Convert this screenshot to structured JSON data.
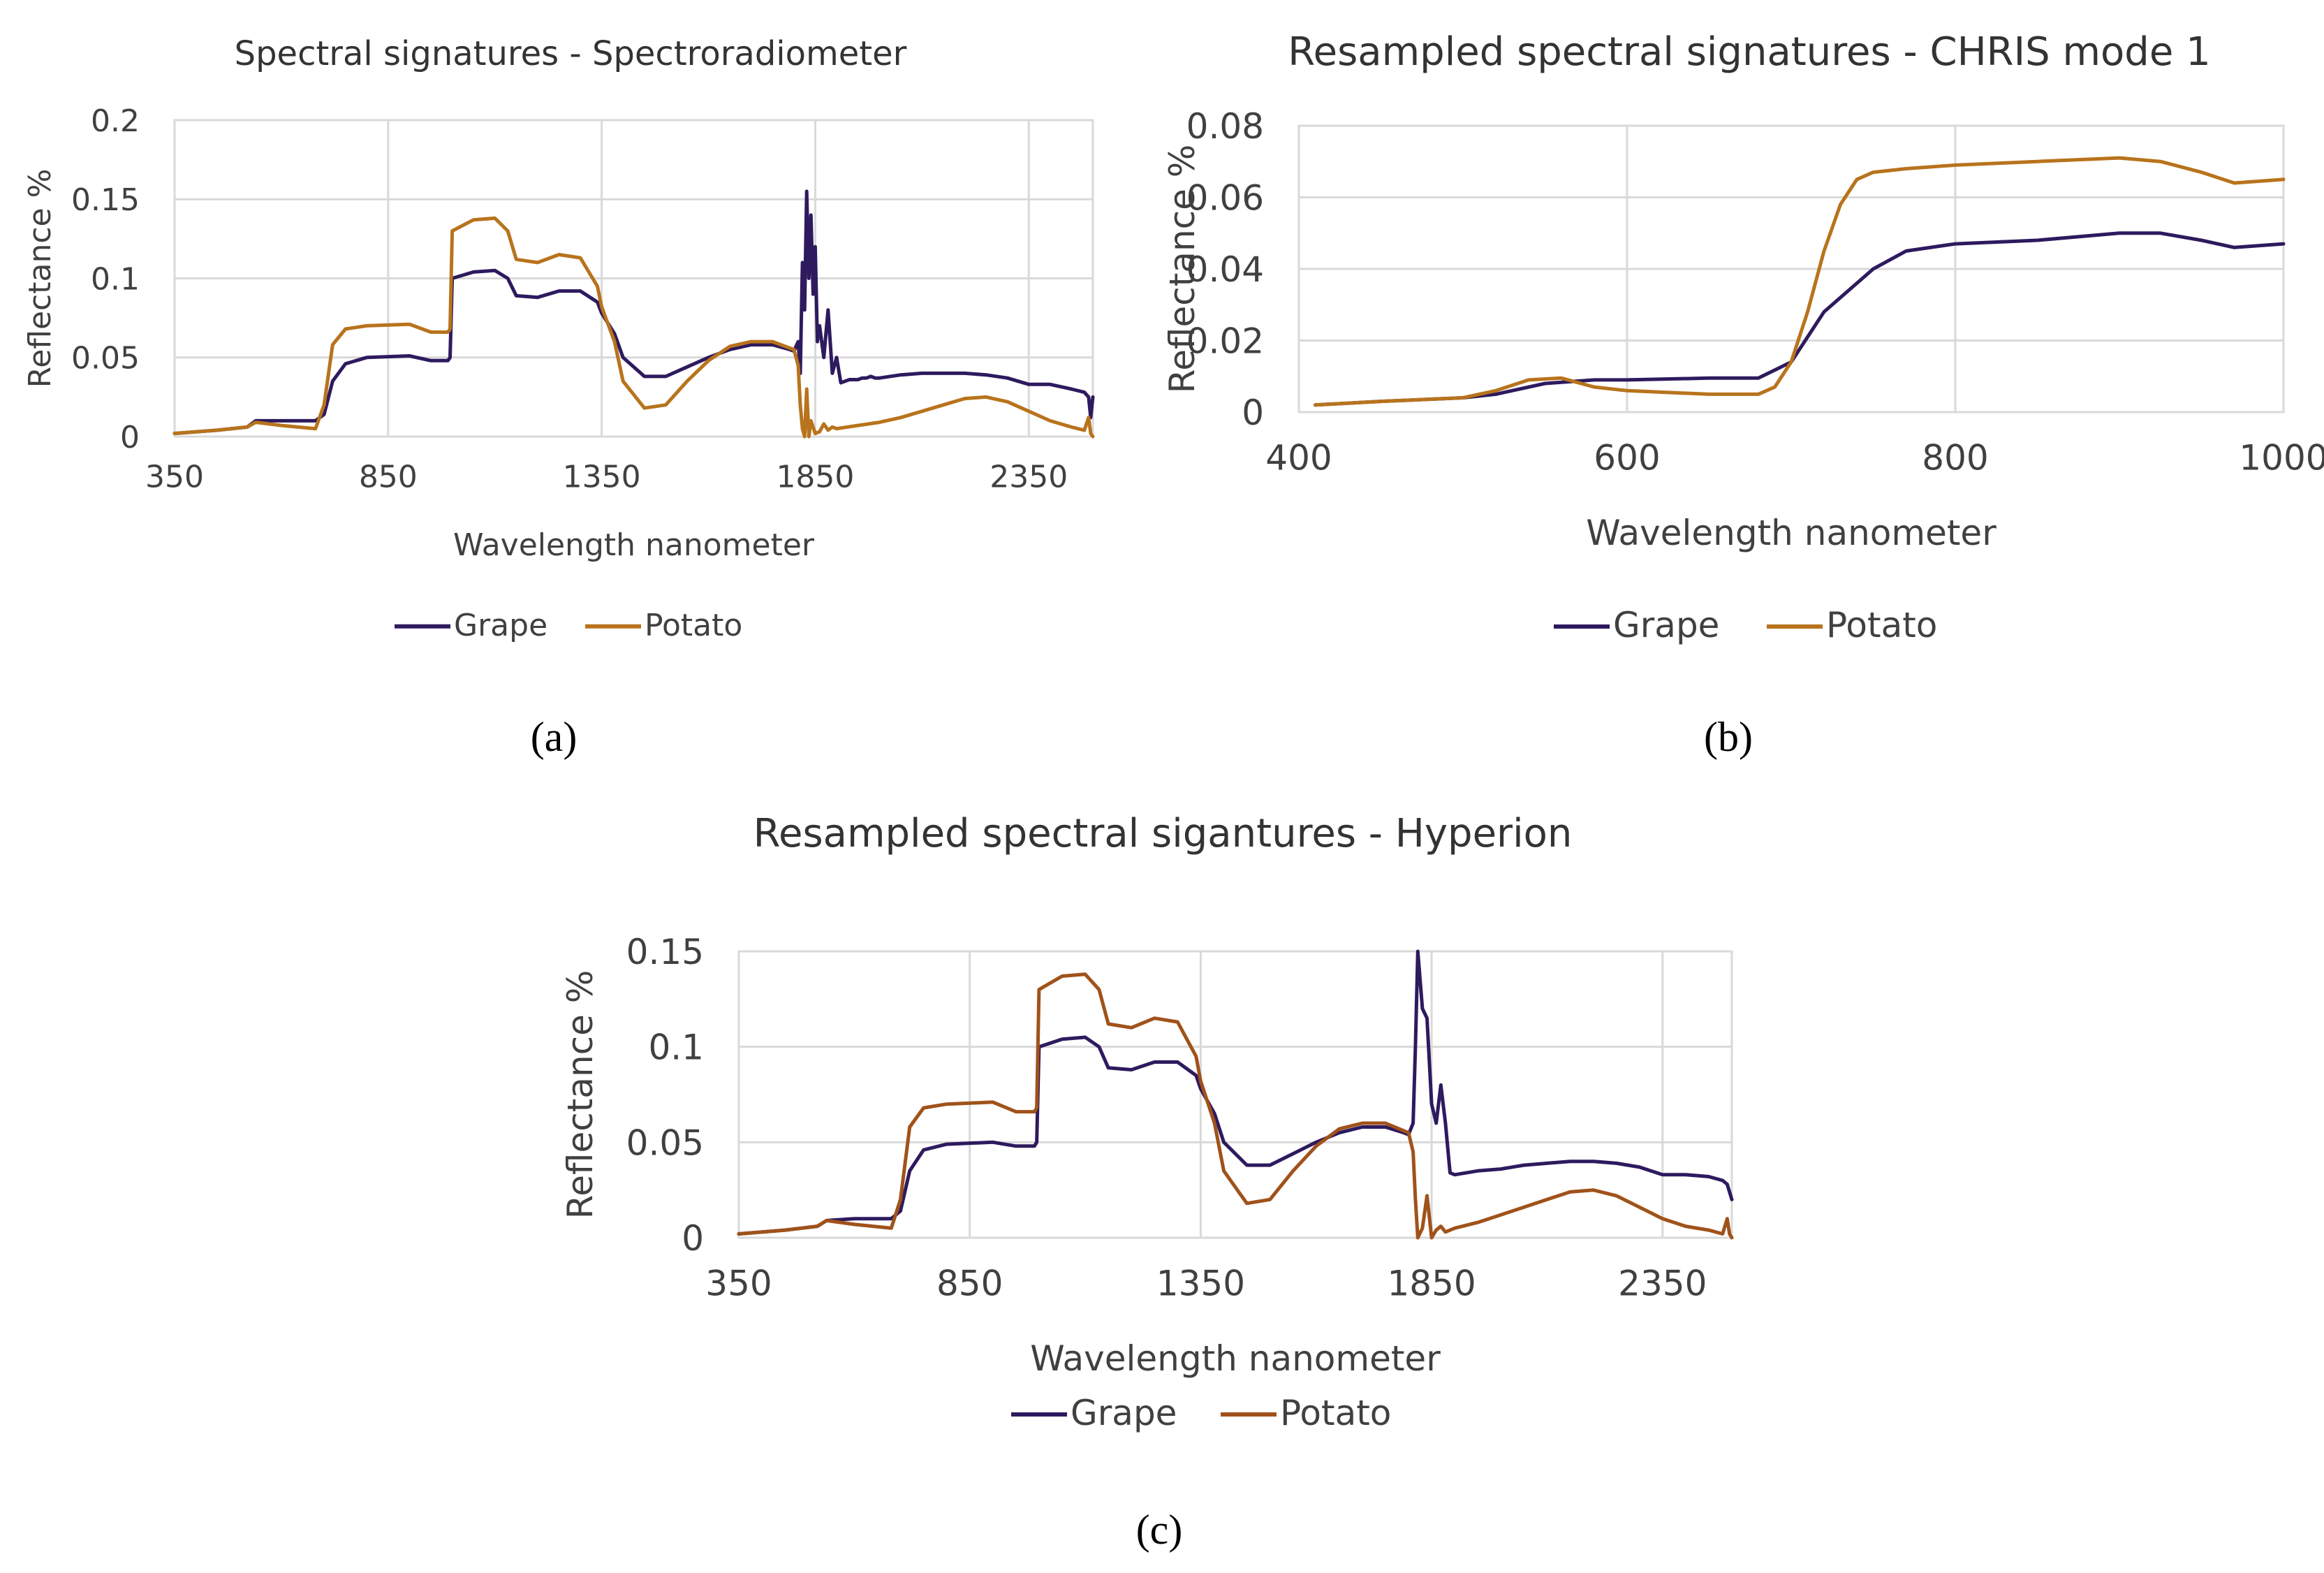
{
  "colors": {
    "grape": "#2e1a5e",
    "potato": "#b8731c",
    "potato_c": "#a0521a",
    "grid": "#d9d9d9",
    "spike": "#6a2aa0"
  },
  "chart_data": [
    {
      "id": "a",
      "type": "line",
      "title": "Spectral signatures - Spectroradiometer",
      "xlabel": "Wavelength nanometer",
      "ylabel": "Reflectance %",
      "xlim": [
        350,
        2500
      ],
      "ylim": [
        0,
        0.2
      ],
      "xticks": [
        350,
        850,
        1350,
        1850,
        2350
      ],
      "yticks": [
        0,
        0.05,
        0.1,
        0.15,
        0.2
      ],
      "xtick_labels": [
        "350",
        "850",
        "1350",
        "1850",
        "2350"
      ],
      "ytick_labels": [
        "0",
        "0.05",
        "0.1",
        "0.15",
        "0.2"
      ],
      "legend": "bottom",
      "panel_label": "(a)",
      "series": [
        {
          "name": "Grape",
          "color_key": "grape",
          "x": [
            350,
            450,
            520,
            540,
            600,
            680,
            700,
            720,
            750,
            800,
            900,
            950,
            990,
            995,
            1000,
            1050,
            1100,
            1130,
            1150,
            1200,
            1250,
            1300,
            1340,
            1350,
            1380,
            1400,
            1450,
            1500,
            1550,
            1600,
            1650,
            1700,
            1750,
            1790,
            1800,
            1810,
            1815,
            1820,
            1825,
            1830,
            1835,
            1840,
            1845,
            1850,
            1855,
            1860,
            1870,
            1880,
            1890,
            1900,
            1910,
            1920,
            1930,
            1940,
            1950,
            1960,
            1970,
            1980,
            1990,
            2000,
            2050,
            2100,
            2150,
            2200,
            2250,
            2300,
            2350,
            2400,
            2450,
            2480,
            2490,
            2495,
            2500
          ],
          "y": [
            0.002,
            0.004,
            0.006,
            0.01,
            0.01,
            0.01,
            0.014,
            0.035,
            0.046,
            0.05,
            0.051,
            0.048,
            0.048,
            0.05,
            0.1,
            0.104,
            0.105,
            0.1,
            0.089,
            0.088,
            0.092,
            0.092,
            0.085,
            0.078,
            0.065,
            0.05,
            0.038,
            0.038,
            0.044,
            0.05,
            0.055,
            0.058,
            0.058,
            0.055,
            0.054,
            0.06,
            0.04,
            0.11,
            0.08,
            0.155,
            0.1,
            0.14,
            0.09,
            0.12,
            0.06,
            0.07,
            0.05,
            0.08,
            0.04,
            0.05,
            0.034,
            0.035,
            0.036,
            0.036,
            0.036,
            0.037,
            0.037,
            0.038,
            0.037,
            0.037,
            0.039,
            0.04,
            0.04,
            0.04,
            0.039,
            0.037,
            0.033,
            0.033,
            0.03,
            0.028,
            0.025,
            0.012,
            0.025
          ]
        },
        {
          "name": "Potato",
          "color_key": "potato",
          "x": [
            350,
            450,
            520,
            540,
            600,
            680,
            700,
            720,
            750,
            800,
            900,
            950,
            990,
            995,
            1000,
            1050,
            1100,
            1130,
            1150,
            1200,
            1250,
            1300,
            1340,
            1350,
            1380,
            1400,
            1450,
            1500,
            1550,
            1600,
            1650,
            1700,
            1750,
            1790,
            1800,
            1810,
            1815,
            1820,
            1825,
            1830,
            1835,
            1840,
            1850,
            1860,
            1870,
            1880,
            1890,
            1900,
            1950,
            2000,
            2050,
            2100,
            2150,
            2200,
            2250,
            2300,
            2350,
            2400,
            2450,
            2480,
            2490,
            2495,
            2500
          ],
          "y": [
            0.002,
            0.004,
            0.006,
            0.009,
            0.007,
            0.005,
            0.02,
            0.058,
            0.068,
            0.07,
            0.071,
            0.066,
            0.066,
            0.068,
            0.13,
            0.137,
            0.138,
            0.13,
            0.112,
            0.11,
            0.115,
            0.113,
            0.095,
            0.082,
            0.06,
            0.035,
            0.018,
            0.02,
            0.035,
            0.048,
            0.057,
            0.06,
            0.06,
            0.056,
            0.055,
            0.045,
            0.02,
            0.005,
            0.0,
            0.03,
            0.0,
            0.01,
            0.002,
            0.003,
            0.008,
            0.004,
            0.006,
            0.005,
            0.007,
            0.009,
            0.012,
            0.016,
            0.02,
            0.024,
            0.025,
            0.022,
            0.016,
            0.01,
            0.006,
            0.004,
            0.012,
            0.002,
            0.0
          ]
        }
      ]
    },
    {
      "id": "b",
      "type": "line",
      "title": "Resampled spectral signatures - CHRIS mode 1",
      "xlabel": "Wavelength nanometer",
      "ylabel": "Reflectance %",
      "xlim": [
        400,
        1000
      ],
      "ylim": [
        0,
        0.08
      ],
      "xticks": [
        400,
        600,
        800,
        1000
      ],
      "yticks": [
        0,
        0.02,
        0.04,
        0.06,
        0.08
      ],
      "xtick_labels": [
        "400",
        "600",
        "800",
        "1000"
      ],
      "ytick_labels": [
        "0",
        "0.02",
        "0.04",
        "0.06",
        "0.08"
      ],
      "legend": "bottom",
      "panel_label": "(b)",
      "series": [
        {
          "name": "Grape",
          "color_key": "grape",
          "x": [
            410,
            450,
            500,
            520,
            550,
            580,
            600,
            650,
            680,
            700,
            720,
            750,
            770,
            800,
            850,
            900,
            925,
            950,
            970,
            1000
          ],
          "y": [
            0.002,
            0.003,
            0.004,
            0.005,
            0.008,
            0.009,
            0.009,
            0.0095,
            0.0095,
            0.014,
            0.028,
            0.04,
            0.045,
            0.047,
            0.048,
            0.05,
            0.05,
            0.048,
            0.046,
            0.047
          ]
        },
        {
          "name": "Potato",
          "color_key": "potato",
          "x": [
            410,
            450,
            500,
            520,
            540,
            560,
            580,
            600,
            650,
            680,
            690,
            700,
            710,
            720,
            730,
            740,
            750,
            770,
            800,
            850,
            900,
            925,
            950,
            970,
            1000
          ],
          "y": [
            0.002,
            0.003,
            0.004,
            0.006,
            0.009,
            0.0095,
            0.007,
            0.006,
            0.005,
            0.005,
            0.007,
            0.014,
            0.028,
            0.045,
            0.058,
            0.065,
            0.067,
            0.068,
            0.069,
            0.07,
            0.071,
            0.07,
            0.067,
            0.064,
            0.065
          ]
        }
      ]
    },
    {
      "id": "c",
      "type": "line",
      "title": "Resampled spectral sigantures - Hyperion",
      "xlabel": "Wavelength nanometer",
      "ylabel": "Reflectance %",
      "xlim": [
        350,
        2500
      ],
      "ylim": [
        0,
        0.15
      ],
      "xticks": [
        350,
        850,
        1350,
        1850,
        2350
      ],
      "yticks": [
        0,
        0.05,
        0.1,
        0.15
      ],
      "xtick_labels": [
        "350",
        "850",
        "1350",
        "1850",
        "2350"
      ],
      "ytick_labels": [
        "0",
        "0.05",
        "0.1",
        "0.15"
      ],
      "legend": "bottom",
      "panel_label": "(c)",
      "series": [
        {
          "name": "Grape",
          "color_key": "grape",
          "x": [
            350,
            450,
            520,
            540,
            600,
            680,
            700,
            720,
            750,
            800,
            900,
            950,
            990,
            995,
            1000,
            1050,
            1100,
            1130,
            1150,
            1200,
            1250,
            1300,
            1340,
            1350,
            1380,
            1400,
            1450,
            1500,
            1550,
            1600,
            1650,
            1700,
            1750,
            1790,
            1800,
            1810,
            1815,
            1820,
            1830,
            1840,
            1850,
            1860,
            1870,
            1880,
            1890,
            1900,
            1950,
            2000,
            2050,
            2100,
            2150,
            2200,
            2250,
            2300,
            2350,
            2400,
            2450,
            2480,
            2490,
            2495,
            2500
          ],
          "y": [
            0.002,
            0.004,
            0.006,
            0.009,
            0.01,
            0.01,
            0.014,
            0.035,
            0.046,
            0.049,
            0.05,
            0.048,
            0.048,
            0.05,
            0.1,
            0.104,
            0.105,
            0.1,
            0.089,
            0.088,
            0.092,
            0.092,
            0.085,
            0.078,
            0.065,
            0.05,
            0.038,
            0.038,
            0.044,
            0.05,
            0.055,
            0.058,
            0.058,
            0.055,
            0.054,
            0.06,
            0.1,
            0.15,
            0.12,
            0.115,
            0.07,
            0.06,
            0.08,
            0.06,
            0.034,
            0.033,
            0.035,
            0.036,
            0.038,
            0.039,
            0.04,
            0.04,
            0.039,
            0.037,
            0.033,
            0.033,
            0.032,
            0.03,
            0.028,
            0.024,
            0.02
          ]
        },
        {
          "name": "Potato",
          "color_key": "potato_c",
          "x": [
            350,
            450,
            520,
            540,
            600,
            680,
            700,
            720,
            750,
            800,
            900,
            950,
            990,
            995,
            1000,
            1050,
            1100,
            1130,
            1150,
            1200,
            1250,
            1300,
            1340,
            1350,
            1380,
            1400,
            1450,
            1500,
            1550,
            1600,
            1650,
            1700,
            1750,
            1790,
            1800,
            1810,
            1815,
            1820,
            1830,
            1840,
            1850,
            1860,
            1870,
            1880,
            1890,
            1900,
            1950,
            2000,
            2050,
            2100,
            2150,
            2200,
            2250,
            2300,
            2350,
            2400,
            2450,
            2480,
            2490,
            2495,
            2500
          ],
          "y": [
            0.002,
            0.004,
            0.006,
            0.009,
            0.007,
            0.005,
            0.02,
            0.058,
            0.068,
            0.07,
            0.071,
            0.066,
            0.066,
            0.068,
            0.13,
            0.137,
            0.138,
            0.13,
            0.112,
            0.11,
            0.115,
            0.113,
            0.095,
            0.082,
            0.06,
            0.035,
            0.018,
            0.02,
            0.035,
            0.048,
            0.057,
            0.06,
            0.06,
            0.056,
            0.055,
            0.045,
            0.02,
            0.0,
            0.005,
            0.022,
            0.0,
            0.004,
            0.006,
            0.003,
            0.004,
            0.005,
            0.008,
            0.012,
            0.016,
            0.02,
            0.024,
            0.025,
            0.022,
            0.016,
            0.01,
            0.006,
            0.004,
            0.002,
            0.01,
            0.002,
            0.0
          ]
        }
      ]
    }
  ]
}
